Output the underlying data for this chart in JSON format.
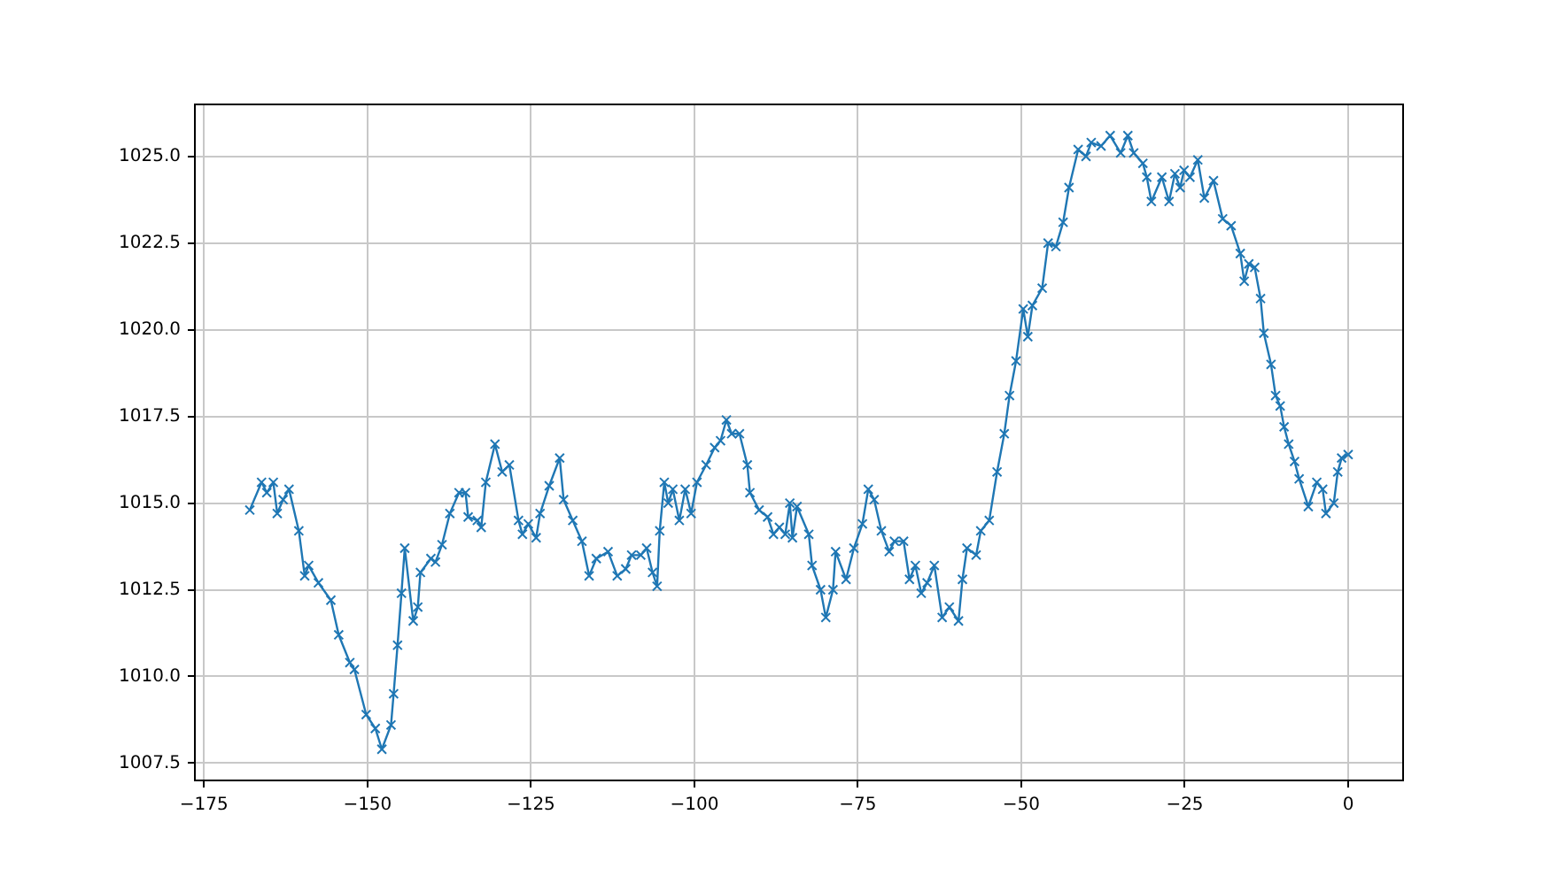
{
  "chart_data": {
    "type": "line",
    "marker": "cross",
    "line_style": "solid",
    "grid": true,
    "legend": false,
    "xlim": [
      -176.4,
      8.4
    ],
    "ylim": [
      1007.0,
      1026.5
    ],
    "xticks": [
      {
        "value": -175,
        "label": "−175"
      },
      {
        "value": -150,
        "label": "−150"
      },
      {
        "value": -125,
        "label": "−125"
      },
      {
        "value": -100,
        "label": "−100"
      },
      {
        "value": -75,
        "label": "−75"
      },
      {
        "value": -50,
        "label": "−50"
      },
      {
        "value": -25,
        "label": "−25"
      },
      0
    ],
    "yticks": [
      {
        "value": 1007.5,
        "label": "1007.5"
      },
      {
        "value": 1010,
        "label": "1010.0"
      },
      {
        "value": 1012.5,
        "label": "1012.5"
      },
      {
        "value": 1015,
        "label": "1015.0"
      },
      {
        "value": 1017.5,
        "label": "1017.5"
      },
      {
        "value": 1020,
        "label": "1020.0"
      },
      {
        "value": 1022.5,
        "label": "1022.5"
      },
      {
        "value": 1025,
        "label": "1025.0"
      }
    ],
    "series": [
      {
        "color": "#1f77b4",
        "x": [
          -168.0,
          -166.2,
          -165.4,
          -164.4,
          -163.8,
          -162.9,
          -162.0,
          -160.5,
          -159.6,
          -159.0,
          -157.5,
          -155.6,
          -154.4,
          -152.7,
          -152.0,
          -150.2,
          -148.8,
          -147.8,
          -146.4,
          -146.0,
          -145.4,
          -144.8,
          -144.3,
          -143.0,
          -142.3,
          -141.9,
          -140.3,
          -139.6,
          -138.6,
          -137.4,
          -136.0,
          -135.0,
          -134.6,
          -133.2,
          -132.6,
          -131.9,
          -130.5,
          -129.4,
          -128.3,
          -126.9,
          -126.3,
          -125.4,
          -124.2,
          -123.6,
          -122.2,
          -120.6,
          -120.0,
          -118.6,
          -117.2,
          -116.1,
          -115.0,
          -113.2,
          -111.8,
          -110.5,
          -109.6,
          -108.2,
          -107.3,
          -106.4,
          -105.7,
          -105.3,
          -104.6,
          -104.0,
          -103.3,
          -102.3,
          -101.4,
          -100.5,
          -99.6,
          -98.2,
          -96.9,
          -96.0,
          -95.1,
          -94.3,
          -93.1,
          -91.9,
          -91.5,
          -90.1,
          -88.8,
          -87.9,
          -87.0,
          -86.1,
          -85.4,
          -85.0,
          -84.3,
          -82.5,
          -82.0,
          -80.7,
          -79.9,
          -78.8,
          -78.4,
          -76.8,
          -75.6,
          -74.3,
          -73.4,
          -72.5,
          -71.4,
          -70.2,
          -69.4,
          -68.0,
          -67.1,
          -66.2,
          -65.3,
          -64.4,
          -63.3,
          -62.1,
          -61.0,
          -59.6,
          -59.0,
          -58.3,
          -56.9,
          -56.2,
          -54.9,
          -53.7,
          -52.6,
          -51.8,
          -50.8,
          -49.7,
          -49.0,
          -48.3,
          -46.8,
          -45.9,
          -44.7,
          -43.6,
          -42.7,
          -41.3,
          -40.1,
          -39.3,
          -37.8,
          -36.4,
          -34.8,
          -33.7,
          -32.8,
          -31.4,
          -30.8,
          -30.1,
          -28.5,
          -27.4,
          -26.5,
          -25.7,
          -25.1,
          -24.2,
          -23.0,
          -22.0,
          -20.6,
          -19.2,
          -17.9,
          -16.5,
          -15.9,
          -15.2,
          -14.3,
          -13.4,
          -12.9,
          -11.8,
          -11.1,
          -10.4,
          -9.8,
          -9.1,
          -8.2,
          -7.5,
          -6.1,
          -4.8,
          -3.9,
          -3.4,
          -2.2,
          -1.6,
          -1.0,
          0
        ],
        "values": [
          1014.8,
          1015.6,
          1015.3,
          1015.6,
          1014.7,
          1015.1,
          1015.4,
          1014.2,
          1012.9,
          1013.2,
          1012.7,
          1012.2,
          1011.2,
          1010.4,
          1010.2,
          1008.9,
          1008.5,
          1007.9,
          1008.6,
          1009.5,
          1010.9,
          1012.4,
          1013.7,
          1011.6,
          1012.0,
          1013.0,
          1013.4,
          1013.3,
          1013.8,
          1014.7,
          1015.3,
          1015.3,
          1014.6,
          1014.5,
          1014.3,
          1015.6,
          1016.7,
          1015.9,
          1016.1,
          1014.5,
          1014.1,
          1014.4,
          1014.0,
          1014.7,
          1015.5,
          1016.3,
          1015.1,
          1014.5,
          1013.9,
          1012.9,
          1013.4,
          1013.6,
          1012.9,
          1013.1,
          1013.5,
          1013.5,
          1013.7,
          1013.0,
          1012.6,
          1014.2,
          1015.6,
          1015.0,
          1015.4,
          1014.5,
          1015.4,
          1014.7,
          1015.6,
          1016.1,
          1016.6,
          1016.8,
          1017.4,
          1017.0,
          1017.0,
          1016.1,
          1015.3,
          1014.8,
          1014.6,
          1014.1,
          1014.3,
          1014.1,
          1015.0,
          1014.0,
          1014.9,
          1014.1,
          1013.2,
          1012.5,
          1011.7,
          1012.5,
          1013.6,
          1012.8,
          1013.7,
          1014.4,
          1015.4,
          1015.1,
          1014.2,
          1013.6,
          1013.9,
          1013.9,
          1012.8,
          1013.2,
          1012.4,
          1012.7,
          1013.2,
          1011.7,
          1012.0,
          1011.6,
          1012.8,
          1013.7,
          1013.5,
          1014.2,
          1014.5,
          1015.9,
          1017.0,
          1018.1,
          1019.1,
          1020.6,
          1019.8,
          1020.7,
          1021.2,
          1022.5,
          1022.4,
          1023.1,
          1024.1,
          1025.2,
          1025.0,
          1025.4,
          1025.3,
          1025.6,
          1025.1,
          1025.6,
          1025.1,
          1024.8,
          1024.4,
          1023.7,
          1024.4,
          1023.7,
          1024.5,
          1024.1,
          1024.6,
          1024.4,
          1024.9,
          1023.8,
          1024.3,
          1023.2,
          1023.0,
          1022.2,
          1021.4,
          1021.9,
          1021.8,
          1020.9,
          1019.9,
          1019.0,
          1018.1,
          1017.8,
          1017.2,
          1016.7,
          1016.2,
          1015.7,
          1014.9,
          1015.6,
          1015.4,
          1014.7,
          1015.0,
          1015.9,
          1016.3,
          1016.4
        ]
      }
    ]
  }
}
